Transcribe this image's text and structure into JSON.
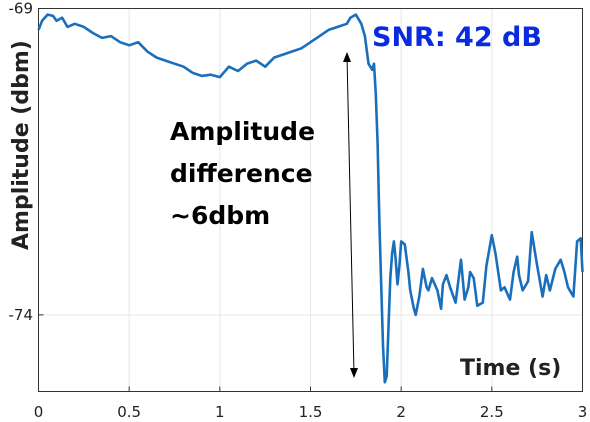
{
  "chart_data": {
    "type": "line",
    "title": "",
    "xlabel": "Time (s)",
    "ylabel": "Amplitude (dbm)",
    "xlim": [
      0,
      3
    ],
    "ylim": [
      -75.25,
      -69
    ],
    "x_tick_labels": [
      "0",
      "0.5",
      "1",
      "1.5",
      "2",
      "2.5",
      "3"
    ],
    "x_ticks": [
      0,
      0.5,
      1,
      1.5,
      2,
      2.5,
      3
    ],
    "y_tick_labels": [
      "-69",
      "-74"
    ],
    "y_ticks": [
      -69,
      -74
    ],
    "grid": true,
    "line_color": "#1a6fbd",
    "annotations": {
      "snr": "SNR: 42 dB",
      "snr_color": "#0a2ae0",
      "diff_line1": "Amplitude",
      "diff_line2": "difference",
      "diff_line3": "~6dbm"
    },
    "series": [
      {
        "x": [
          0.0,
          0.02,
          0.05,
          0.08,
          0.1,
          0.13,
          0.16,
          0.2,
          0.25,
          0.3,
          0.35,
          0.4,
          0.45,
          0.5,
          0.55,
          0.6,
          0.65,
          0.7,
          0.75,
          0.8,
          0.85,
          0.9,
          0.95,
          1.0,
          1.05,
          1.1,
          1.15,
          1.2,
          1.25,
          1.3,
          1.35,
          1.4,
          1.45,
          1.5,
          1.55,
          1.6,
          1.65,
          1.7,
          1.72,
          1.75,
          1.78,
          1.8,
          1.82,
          1.84,
          1.85,
          1.86,
          1.87,
          1.88,
          1.89,
          1.9,
          1.91,
          1.92,
          1.93,
          1.94,
          1.95,
          1.96,
          1.97,
          1.98,
          1.99,
          2.0,
          2.02,
          2.04,
          2.05,
          2.07,
          2.08,
          2.1,
          2.12,
          2.14,
          2.15,
          2.17,
          2.2,
          2.22,
          2.23,
          2.25,
          2.27,
          2.3,
          2.33,
          2.35,
          2.37,
          2.38,
          2.4,
          2.42,
          2.45,
          2.47,
          2.5,
          2.52,
          2.55,
          2.57,
          2.6,
          2.62,
          2.64,
          2.65,
          2.67,
          2.7,
          2.72,
          2.75,
          2.78,
          2.8,
          2.82,
          2.85,
          2.88,
          2.9,
          2.92,
          2.95,
          2.97,
          2.99,
          3.0
        ],
        "y": [
          -69.35,
          -69.2,
          -69.1,
          -69.12,
          -69.2,
          -69.15,
          -69.3,
          -69.25,
          -69.3,
          -69.4,
          -69.48,
          -69.45,
          -69.55,
          -69.6,
          -69.55,
          -69.7,
          -69.8,
          -69.85,
          -69.9,
          -69.95,
          -70.05,
          -70.1,
          -70.08,
          -70.12,
          -69.95,
          -70.02,
          -69.9,
          -69.85,
          -69.95,
          -69.8,
          -69.75,
          -69.7,
          -69.65,
          -69.55,
          -69.45,
          -69.35,
          -69.3,
          -69.25,
          -69.15,
          -69.1,
          -69.25,
          -69.45,
          -69.9,
          -70.0,
          -69.9,
          -70.4,
          -71.2,
          -72.5,
          -73.5,
          -74.5,
          -75.1,
          -75.0,
          -74.2,
          -73.4,
          -73.0,
          -72.8,
          -73.1,
          -73.5,
          -73.2,
          -72.8,
          -72.85,
          -73.3,
          -73.6,
          -73.9,
          -74.0,
          -73.7,
          -73.25,
          -73.55,
          -73.6,
          -73.4,
          -73.6,
          -73.9,
          -73.5,
          -73.35,
          -73.55,
          -73.8,
          -73.1,
          -73.75,
          -73.55,
          -73.3,
          -73.4,
          -73.85,
          -73.8,
          -73.2,
          -72.7,
          -73.0,
          -73.6,
          -73.55,
          -73.75,
          -73.3,
          -73.05,
          -73.35,
          -73.6,
          -73.45,
          -72.65,
          -73.2,
          -73.7,
          -73.35,
          -73.6,
          -73.25,
          -73.1,
          -73.3,
          -73.55,
          -73.7,
          -72.8,
          -72.75,
          -73.3
        ]
      }
    ]
  }
}
